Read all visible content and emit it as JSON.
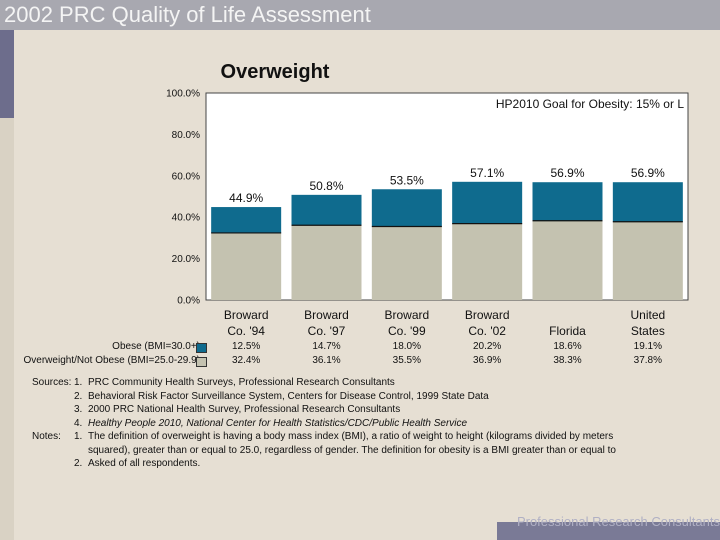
{
  "header": {
    "title": "2002 PRC Quality of Life Assessment"
  },
  "footer": {
    "text": "Professional Research Consultants"
  },
  "chart_data": {
    "type": "bar",
    "stacked": true,
    "title": "Overweight",
    "goal_label": "HP2010 Goal for Obesity: 15% or L",
    "ylim": [
      0,
      100
    ],
    "yticks": [
      "0.0%",
      "20.0%",
      "40.0%",
      "60.0%",
      "80.0%",
      "100.0%"
    ],
    "categories": [
      [
        "Broward",
        "Co. '94"
      ],
      [
        "Broward",
        "Co. '97"
      ],
      [
        "Broward",
        "Co. '99"
      ],
      [
        "Broward",
        "Co. '02"
      ],
      [
        "Florida"
      ],
      [
        "United",
        "States"
      ]
    ],
    "totals": [
      "44.9%",
      "50.8%",
      "53.5%",
      "57.1%",
      "56.9%",
      "56.9%"
    ],
    "series": [
      {
        "name": "Overweight/Not Obese (BMI=25.0-29.9)",
        "color": "#c4c2b0",
        "values": [
          32.4,
          36.1,
          35.5,
          36.9,
          38.3,
          37.8
        ],
        "labels": [
          "32.4%",
          "36.1%",
          "35.5%",
          "36.9%",
          "38.3%",
          "37.8%"
        ]
      },
      {
        "name": "Obese (BMI=30.0+)",
        "color": "#0f6b8e",
        "values": [
          12.5,
          14.7,
          18.0,
          20.2,
          18.6,
          19.1
        ],
        "labels": [
          "12.5%",
          "14.7%",
          "18.0%",
          "20.2%",
          "18.6%",
          "19.1%"
        ]
      }
    ]
  },
  "notes": {
    "sources_label": "Sources:",
    "notes_label": "Notes:",
    "sources": [
      {
        "num": "1.",
        "text": "PRC Community Health Surveys, Professional Research Consultants"
      },
      {
        "num": "2.",
        "text": "Behavioral Risk Factor Surveillance System, Centers for Disease Control, 1999 State Data"
      },
      {
        "num": "3.",
        "text": "2000 PRC National Health Survey, Professional Research Consultants"
      },
      {
        "num": "4.",
        "text": "Healthy People 2010, National Center for Health Statistics/CDC/Public Health Service"
      }
    ],
    "notes": [
      {
        "num": "1.",
        "text": "The definition of overweight is having a body mass index (BMI), a ratio of weight to height (kilograms divided by meters"
      },
      {
        "num": "",
        "text": "squared), greater than or equal to 25.0, regardless of gender.  The definition for obesity is a BMI greater than or equal to"
      },
      {
        "num": "2.",
        "text": "Asked of all respondents."
      }
    ]
  }
}
